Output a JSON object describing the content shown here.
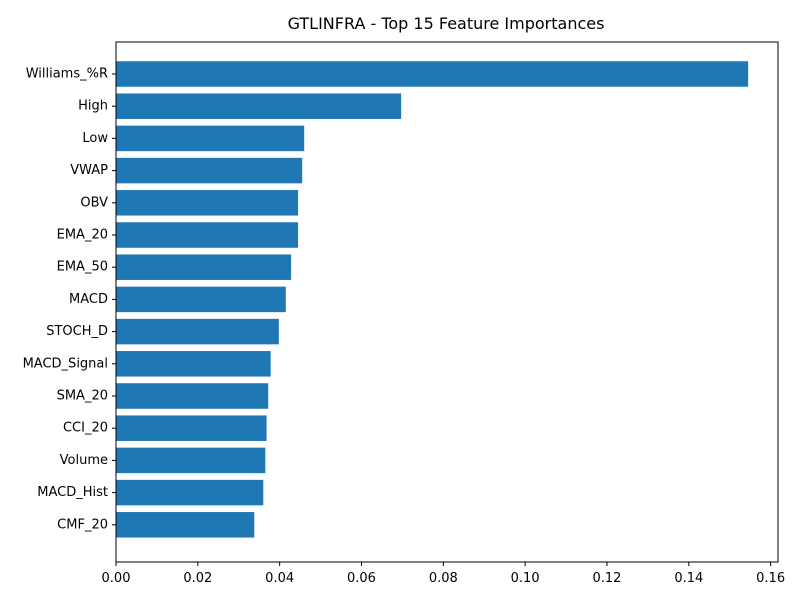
{
  "chart_data": {
    "type": "bar",
    "orientation": "horizontal",
    "title": "GTLINFRA - Top 15 Feature Importances",
    "xlabel": "",
    "ylabel": "",
    "categories": [
      "Williams_%R",
      "High",
      "Low",
      "VWAP",
      "OBV",
      "EMA_20",
      "EMA_50",
      "MACD",
      "STOCH_D",
      "MACD_Signal",
      "SMA_20",
      "CCI_20",
      "Volume",
      "MACD_Hist",
      "CMF_20"
    ],
    "values": [
      0.1545,
      0.0697,
      0.046,
      0.0455,
      0.0445,
      0.0445,
      0.0428,
      0.0415,
      0.0398,
      0.0378,
      0.0372,
      0.0368,
      0.0365,
      0.036,
      0.0338
    ],
    "xlim": [
      0,
      0.1618
    ],
    "xticks": [
      "0.00",
      "0.02",
      "0.04",
      "0.06",
      "0.08",
      "0.10",
      "0.12",
      "0.14",
      "0.16"
    ],
    "grid": false,
    "bar_color": "#1f77b4"
  }
}
